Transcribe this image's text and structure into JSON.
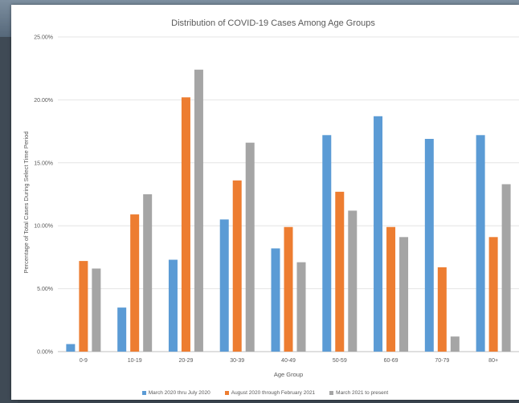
{
  "chart_data": {
    "type": "bar",
    "title": "Distribution of COVID-19 Cases Among Age Groups",
    "xlabel": "Age Group",
    "ylabel": "Percentage of Total Cases During Select Time Period",
    "ylim": [
      0,
      25
    ],
    "yticks": [
      "0.00%",
      "5.00%",
      "10.00%",
      "15.00%",
      "20.00%",
      "25.00%"
    ],
    "grid": true,
    "legend_position": "bottom",
    "categories": [
      "0-9",
      "10-19",
      "20-29",
      "30-39",
      "40-49",
      "50-59",
      "60-69",
      "70-79",
      "80+"
    ],
    "series": [
      {
        "name": "March 2020 thru July 2020",
        "color": "#5b9bd5",
        "values": [
          0.6,
          3.5,
          7.3,
          10.5,
          8.2,
          17.2,
          18.7,
          16.9,
          17.2
        ]
      },
      {
        "name": "August 2020 through February 2021",
        "color": "#ed7d31",
        "values": [
          7.2,
          10.9,
          20.2,
          13.6,
          9.9,
          12.7,
          9.9,
          6.7,
          9.1
        ]
      },
      {
        "name": "March 2021 to present",
        "color": "#a5a5a5",
        "values": [
          6.6,
          12.5,
          22.4,
          16.6,
          7.1,
          11.2,
          9.1,
          1.2,
          13.3
        ]
      }
    ]
  }
}
